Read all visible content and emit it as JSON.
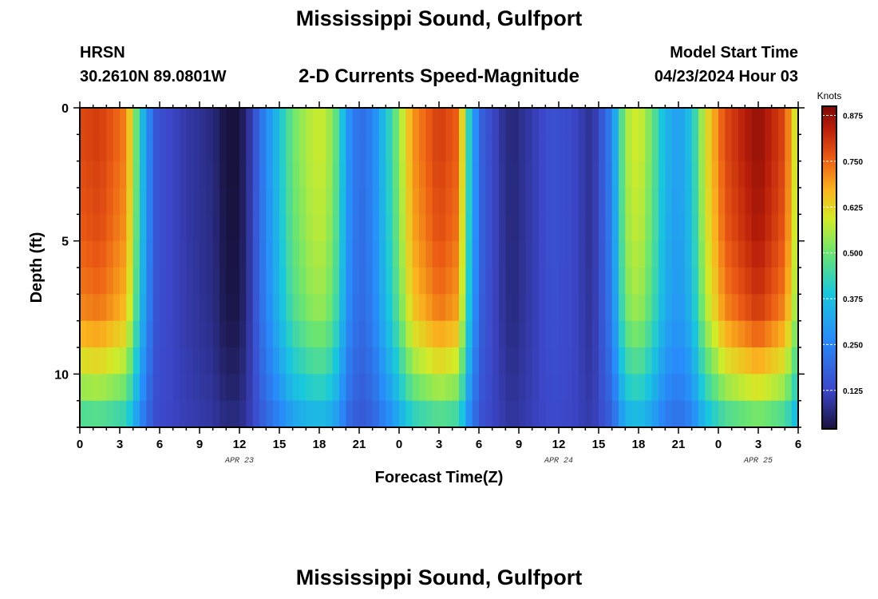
{
  "header": {
    "title": "Mississippi Sound, Gulfport",
    "station_code": "HRSN",
    "station_coords": "30.2610N  89.0801W",
    "subtitle": "2-D Currents Speed-Magnitude",
    "model_start_label": "Model Start Time",
    "model_start_value": "04/23/2024 Hour 03"
  },
  "footer": {
    "repeated_title": "Mississippi Sound, Gulfport"
  },
  "chart_data": {
    "type": "heatmap",
    "title": "2-D Currents Speed-Magnitude",
    "xlabel": "Forecast Time(Z)",
    "ylabel": "Depth (ft)",
    "x_units": "hours from 00Z APR 23",
    "xlim": [
      0,
      54
    ],
    "ylim": [
      0,
      12
    ],
    "y_inverted": true,
    "x_tick_values": [
      0,
      3,
      6,
      9,
      12,
      15,
      18,
      21,
      24,
      27,
      30,
      33,
      36,
      39,
      42,
      45,
      48,
      51,
      54
    ],
    "x_tick_labels": [
      "0",
      "3",
      "6",
      "9",
      "12",
      "15",
      "18",
      "21",
      "0",
      "3",
      "6",
      "9",
      "12",
      "15",
      "18",
      "21",
      "0",
      "3",
      "6"
    ],
    "y_tick_values": [
      0,
      5,
      10
    ],
    "y_tick_labels": [
      "0",
      "5",
      "10"
    ],
    "date_labels": [
      {
        "x": 12,
        "text": "APR 23"
      },
      {
        "x": 36,
        "text": "APR 24"
      },
      {
        "x": 51,
        "text": "APR 25"
      }
    ],
    "colorbar": {
      "label": "Knots",
      "min": 0.02,
      "max": 0.9,
      "ticks": [
        0.125,
        0.25,
        0.375,
        0.5,
        0.625,
        0.75,
        0.875
      ],
      "tick_labels": [
        "0.125",
        "0.250",
        "0.375",
        "0.500",
        "0.625",
        "0.750",
        "0.875"
      ]
    },
    "time_step_hours": 0.5,
    "depth_layers_ft": [
      0.5,
      1.5,
      2.5,
      3.5,
      4.5,
      5.5,
      6.5,
      7.5,
      8.5,
      9.5,
      10.5,
      11.5
    ],
    "surface_speed_keyframes": [
      {
        "t": 0,
        "v": 0.78
      },
      {
        "t": 1.5,
        "v": 0.8
      },
      {
        "t": 3.5,
        "v": 0.72
      },
      {
        "t": 4.3,
        "v": 0.48
      },
      {
        "t": 5.0,
        "v": 0.28
      },
      {
        "t": 5.8,
        "v": 0.15
      },
      {
        "t": 8.0,
        "v": 0.1
      },
      {
        "t": 10.0,
        "v": 0.07
      },
      {
        "t": 11.0,
        "v": 0.02
      },
      {
        "t": 12.0,
        "v": 0.02
      },
      {
        "t": 12.8,
        "v": 0.1
      },
      {
        "t": 13.5,
        "v": 0.2
      },
      {
        "t": 14.5,
        "v": 0.32
      },
      {
        "t": 16.0,
        "v": 0.5
      },
      {
        "t": 17.5,
        "v": 0.58
      },
      {
        "t": 18.5,
        "v": 0.58
      },
      {
        "t": 19.5,
        "v": 0.45
      },
      {
        "t": 20.0,
        "v": 0.3
      },
      {
        "t": 21.0,
        "v": 0.2
      },
      {
        "t": 22.0,
        "v": 0.25
      },
      {
        "t": 23.5,
        "v": 0.45
      },
      {
        "t": 25.0,
        "v": 0.7
      },
      {
        "t": 27.0,
        "v": 0.8
      },
      {
        "t": 28.5,
        "v": 0.75
      },
      {
        "t": 29.0,
        "v": 0.5
      },
      {
        "t": 29.6,
        "v": 0.3
      },
      {
        "t": 30.2,
        "v": 0.18
      },
      {
        "t": 31.5,
        "v": 0.1
      },
      {
        "t": 32.5,
        "v": 0.06
      },
      {
        "t": 34.5,
        "v": 0.12
      },
      {
        "t": 35.5,
        "v": 0.15
      },
      {
        "t": 37.0,
        "v": 0.13
      },
      {
        "t": 38.5,
        "v": 0.08
      },
      {
        "t": 40.0,
        "v": 0.25
      },
      {
        "t": 41.0,
        "v": 0.55
      },
      {
        "t": 42.0,
        "v": 0.6
      },
      {
        "t": 43.0,
        "v": 0.5
      },
      {
        "t": 44.0,
        "v": 0.35
      },
      {
        "t": 45.0,
        "v": 0.3
      },
      {
        "t": 46.0,
        "v": 0.38
      },
      {
        "t": 47.0,
        "v": 0.6
      },
      {
        "t": 48.5,
        "v": 0.78
      },
      {
        "t": 51.0,
        "v": 0.88
      },
      {
        "t": 53.0,
        "v": 0.78
      },
      {
        "t": 54.0,
        "v": 0.55
      }
    ],
    "depth_decay_per_layer": [
      1.0,
      1.0,
      0.99,
      0.98,
      0.97,
      0.95,
      0.93,
      0.9,
      0.83,
      0.74,
      0.64,
      0.52
    ],
    "colors": {
      "frame": "#000000",
      "background": "#ffffff",
      "colorbar_tick": "#ffffff"
    }
  }
}
